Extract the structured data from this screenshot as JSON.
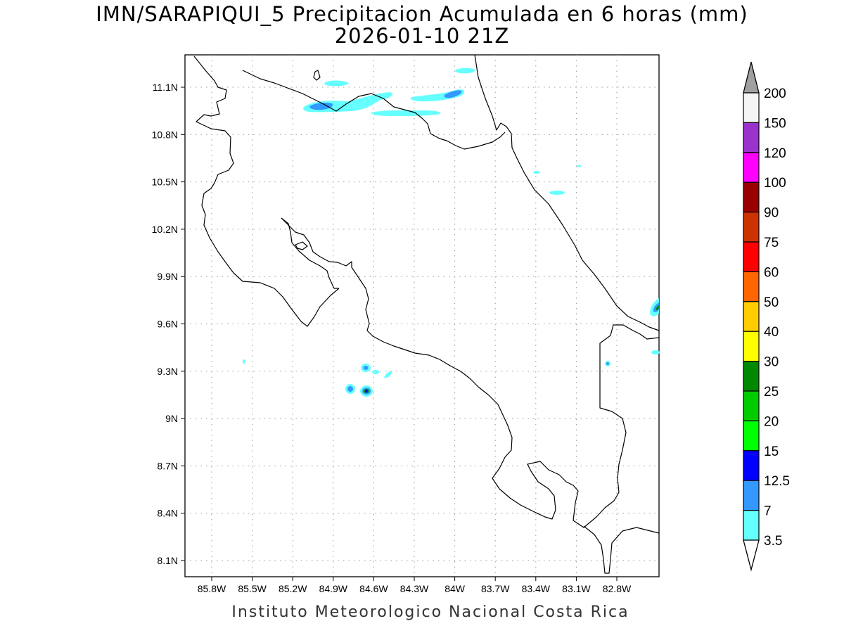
{
  "header": {
    "title_line1": "IMN/SARAPIQUI_5 Precipitacion Acumulada en 6 horas (mm)",
    "title_line2": "2026-01-10 21Z"
  },
  "map": {
    "lat_ticks": [
      "11.1N",
      "10.8N",
      "10.5N",
      "10.2N",
      "9.9N",
      "9.6N",
      "9.3N",
      "9N",
      "8.7N",
      "8.4N",
      "8.1N"
    ],
    "lon_ticks": [
      "85.8W",
      "85.5W",
      "85.2W",
      "84.9W",
      "84.6W",
      "84.3W",
      "84W",
      "83.7W",
      "83.4W",
      "83.1W",
      "82.8W"
    ],
    "grid": true
  },
  "colorbar": {
    "labels": [
      "200",
      "150",
      "120",
      "100",
      "90",
      "75",
      "60",
      "50",
      "40",
      "30",
      "25",
      "20",
      "15",
      "12.5",
      "7",
      "3.5"
    ],
    "colors": [
      "#f5f5f5",
      "#9933cc",
      "#ff00ff",
      "#990000",
      "#cc3300",
      "#ff0000",
      "#ff6600",
      "#ffcc00",
      "#ffff00",
      "#008800",
      "#00cc00",
      "#00ff00",
      "#0000ff",
      "#3399ff",
      "#66ffff"
    ],
    "over_color": "#a0a0a0",
    "under_color": "#ffffff"
  },
  "footer": {
    "credit": "Instituto Meteorologico Nacional Costa Rica"
  }
}
